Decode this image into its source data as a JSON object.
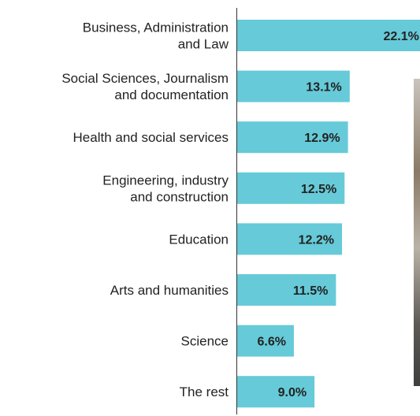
{
  "chart_data": {
    "type": "barh",
    "categories": [
      "Business, Administration\nand Law",
      "Social Sciences, Journalism\nand documentation",
      "Health and social services",
      "Engineering, industry\nand construction",
      "Education",
      "Arts and humanities",
      "Science",
      "The rest"
    ],
    "values": [
      22.1,
      13.1,
      12.9,
      12.5,
      12.2,
      11.5,
      6.6,
      9.0
    ],
    "value_labels": [
      "22.1%",
      "13.1%",
      "12.9%",
      "12.5%",
      "12.2%",
      "11.5%",
      "6.6%",
      "9.0%"
    ],
    "color": "#66cad8"
  }
}
